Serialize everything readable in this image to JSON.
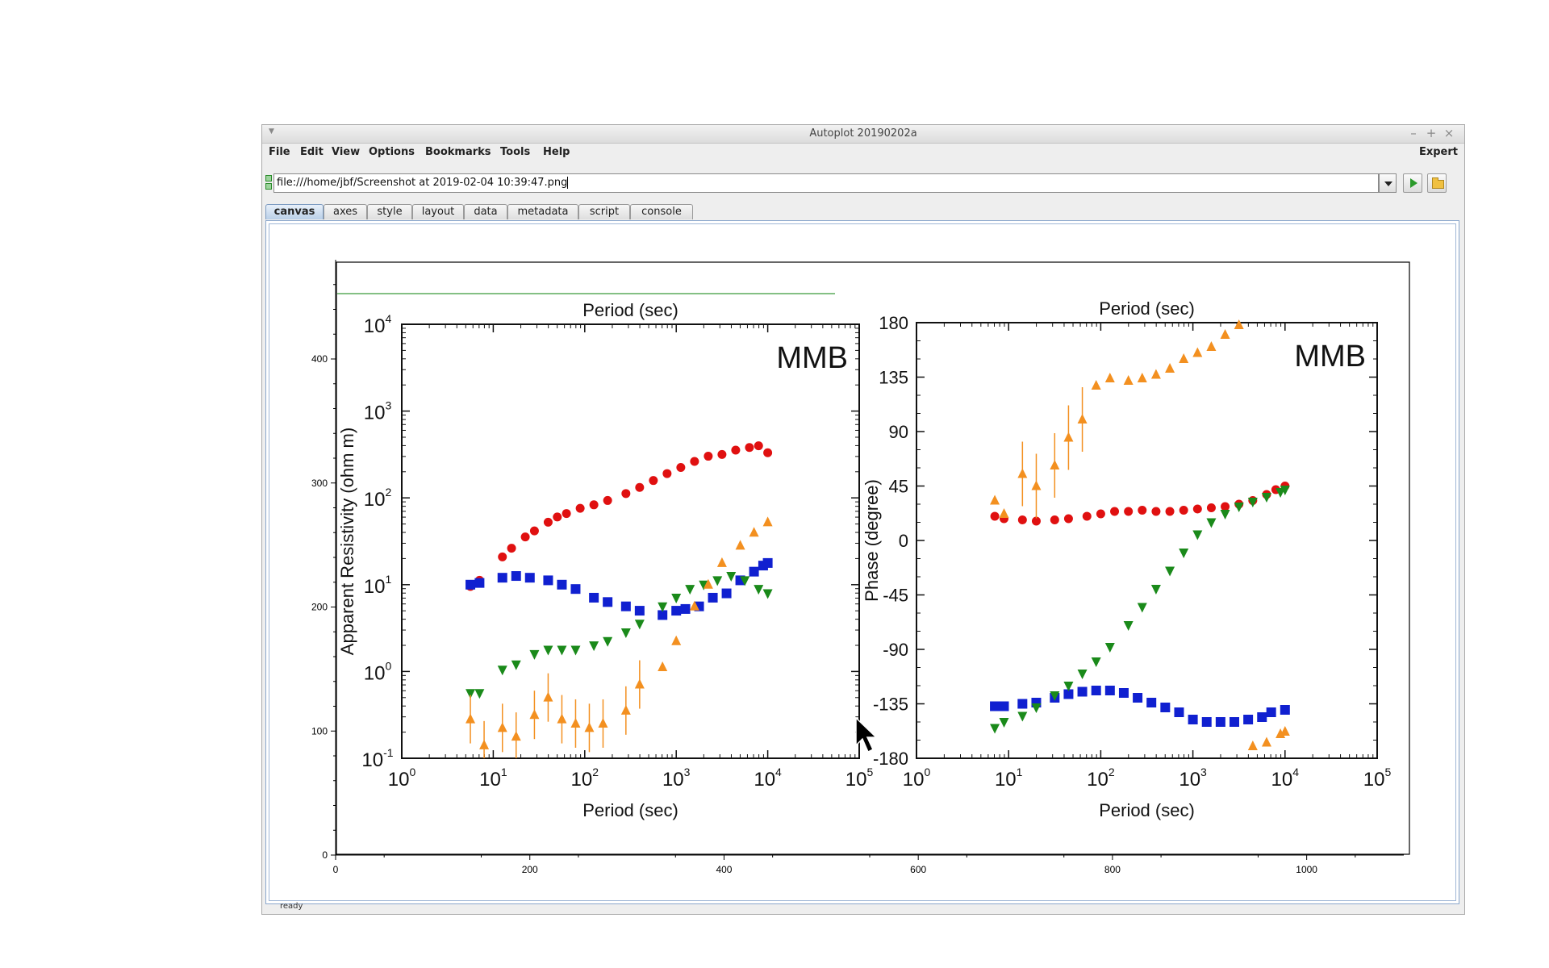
{
  "window": {
    "title": "Autoplot 20190202a",
    "controls": {
      "minimize": "–",
      "maximize": "+",
      "close": "×"
    }
  },
  "menubar": {
    "items": [
      "File",
      "Edit",
      "View",
      "Options",
      "Bookmarks",
      "Tools",
      "Help"
    ],
    "expert_label": "Expert"
  },
  "address": {
    "url": "file:///home/jbf/Screenshot at 2019-02-04 10:39:47.png"
  },
  "tabs": [
    "canvas",
    "axes",
    "style",
    "layout",
    "data",
    "metadata",
    "script",
    "console"
  ],
  "active_tab": "canvas",
  "status": {
    "text": "ready"
  },
  "icons": {
    "dropdown": "chevron-down-icon",
    "play": "play-icon",
    "open": "folder-icon",
    "drag": "drag-handle-icon"
  },
  "colors": {
    "series_red": "#e01010",
    "series_blue": "#1020d0",
    "series_green": "#1a8a1a",
    "series_orange": "#f39020",
    "guide_line": "#3a9a3a"
  },
  "chart_data": {
    "type": "scatter",
    "host_axes": {
      "x_ticks": [
        "0",
        "200",
        "400",
        "600",
        "800",
        "1000"
      ],
      "y_ticks": [
        "0",
        "100",
        "200",
        "300",
        "400"
      ],
      "xlim": [
        0,
        1100
      ],
      "ylim": [
        0,
        480
      ]
    },
    "panels": [
      {
        "label": "MMB",
        "xlabel": "Period (sec)",
        "top_xlabel": "Period (sec)",
        "ylabel": "Apparent Resistivity (ohm m)",
        "x_scale": "log",
        "y_scale": "log",
        "x_ticks": [
          {
            "base": "10",
            "exp": "0"
          },
          {
            "base": "10",
            "exp": "1"
          },
          {
            "base": "10",
            "exp": "2"
          },
          {
            "base": "10",
            "exp": "3"
          },
          {
            "base": "10",
            "exp": "4"
          },
          {
            "base": "10",
            "exp": "5"
          }
        ],
        "y_ticks": [
          {
            "base": "10",
            "exp": "-1"
          },
          {
            "base": "10",
            "exp": "0"
          },
          {
            "base": "10",
            "exp": "1"
          },
          {
            "base": "10",
            "exp": "2"
          },
          {
            "base": "10",
            "exp": "3"
          },
          {
            "base": "10",
            "exp": "4"
          }
        ],
        "xlim_log10": [
          0,
          5
        ],
        "ylim_log10": [
          -1,
          4
        ],
        "series": [
          {
            "color": "series_red",
            "marker": "circle",
            "x_log10": [
              0.75,
              0.85,
              1.1,
              1.2,
              1.35,
              1.45,
              1.6,
              1.7,
              1.8,
              1.95,
              2.1,
              2.25,
              2.45,
              2.6,
              2.75,
              2.9,
              3.05,
              3.2,
              3.35,
              3.5,
              3.65,
              3.8,
              3.9,
              4.0
            ],
            "y_log10": [
              0.98,
              1.05,
              1.32,
              1.42,
              1.55,
              1.62,
              1.72,
              1.78,
              1.82,
              1.88,
              1.92,
              1.97,
              2.05,
              2.12,
              2.2,
              2.28,
              2.35,
              2.42,
              2.48,
              2.5,
              2.55,
              2.58,
              2.6,
              2.52
            ]
          },
          {
            "color": "series_blue",
            "marker": "square",
            "x_log10": [
              0.75,
              0.85,
              1.1,
              1.25,
              1.4,
              1.6,
              1.75,
              1.9,
              2.1,
              2.25,
              2.45,
              2.6,
              2.85,
              3.0,
              3.1,
              3.25,
              3.4,
              3.55,
              3.7,
              3.85,
              3.95,
              4.0
            ],
            "y_log10": [
              1.0,
              1.02,
              1.08,
              1.1,
              1.08,
              1.05,
              1.0,
              0.95,
              0.85,
              0.8,
              0.75,
              0.7,
              0.65,
              0.7,
              0.72,
              0.75,
              0.85,
              0.9,
              1.05,
              1.15,
              1.22,
              1.25
            ]
          },
          {
            "color": "series_green",
            "marker": "triangle-down",
            "x_log10": [
              0.75,
              0.85,
              1.1,
              1.25,
              1.45,
              1.6,
              1.75,
              1.9,
              2.1,
              2.25,
              2.45,
              2.6,
              2.85,
              3.0,
              3.15,
              3.3,
              3.45,
              3.6,
              3.75,
              3.9,
              4.0
            ],
            "y_log10": [
              -0.25,
              -0.25,
              0.02,
              0.08,
              0.2,
              0.25,
              0.25,
              0.25,
              0.3,
              0.35,
              0.45,
              0.55,
              0.75,
              0.85,
              0.95,
              1.0,
              1.05,
              1.1,
              1.05,
              0.95,
              0.9
            ]
          },
          {
            "color": "series_orange",
            "marker": "triangle-up",
            "x_log10": [
              0.75,
              0.9,
              1.1,
              1.25,
              1.45,
              1.6,
              1.75,
              1.9,
              2.05,
              2.2,
              2.45,
              2.6,
              2.85,
              3.0,
              3.2,
              3.35,
              3.5,
              3.7,
              3.85,
              4.0
            ],
            "y_log10": [
              -0.55,
              -0.85,
              -0.65,
              -0.75,
              -0.5,
              -0.3,
              -0.55,
              -0.6,
              -0.65,
              -0.6,
              -0.45,
              -0.15,
              0.05,
              0.35,
              0.75,
              1.0,
              1.25,
              1.45,
              1.6,
              1.72
            ]
          }
        ]
      },
      {
        "label": "MMB",
        "xlabel": "Period (sec)",
        "top_xlabel": "Period (sec)",
        "ylabel": "Phase (degree)",
        "x_scale": "log",
        "x_ticks": [
          {
            "base": "10",
            "exp": "0"
          },
          {
            "base": "10",
            "exp": "1"
          },
          {
            "base": "10",
            "exp": "2"
          },
          {
            "base": "10",
            "exp": "3"
          },
          {
            "base": "10",
            "exp": "4"
          },
          {
            "base": "10",
            "exp": "5"
          }
        ],
        "y_ticks": [
          "180",
          "135",
          "90",
          "45",
          "0",
          "-45",
          "-90",
          "-135",
          "-180"
        ],
        "xlim_log10": [
          0,
          5
        ],
        "ylim": [
          -180,
          180
        ],
        "series": [
          {
            "color": "series_red",
            "marker": "circle",
            "x_log10": [
              0.85,
              0.95,
              1.15,
              1.3,
              1.5,
              1.65,
              1.85,
              2.0,
              2.15,
              2.3,
              2.45,
              2.6,
              2.75,
              2.9,
              3.05,
              3.2,
              3.35,
              3.5,
              3.65,
              3.8,
              3.9,
              4.0
            ],
            "y": [
              20,
              18,
              17,
              16,
              17,
              18,
              20,
              22,
              24,
              24,
              25,
              24,
              24,
              25,
              26,
              27,
              28,
              30,
              33,
              38,
              42,
              45
            ]
          },
          {
            "color": "series_blue",
            "marker": "square",
            "x_log10": [
              0.85,
              0.95,
              1.15,
              1.3,
              1.5,
              1.65,
              1.8,
              1.95,
              2.1,
              2.25,
              2.4,
              2.55,
              2.7,
              2.85,
              3.0,
              3.15,
              3.3,
              3.45,
              3.6,
              3.75,
              3.85,
              4.0
            ],
            "y": [
              -137,
              -137,
              -135,
              -134,
              -130,
              -127,
              -125,
              -124,
              -124,
              -126,
              -130,
              -134,
              -138,
              -142,
              -148,
              -150,
              -150,
              -150,
              -148,
              -146,
              -142,
              -140
            ]
          },
          {
            "color": "series_green",
            "marker": "triangle-down",
            "x_log10": [
              0.85,
              0.95,
              1.15,
              1.3,
              1.5,
              1.65,
              1.8,
              1.95,
              2.1,
              2.3,
              2.45,
              2.6,
              2.75,
              2.9,
              3.05,
              3.2,
              3.35,
              3.5,
              3.65,
              3.8,
              3.95,
              4.0
            ],
            "y": [
              -155,
              -150,
              -145,
              -138,
              -128,
              -120,
              -110,
              -100,
              -88,
              -70,
              -55,
              -40,
              -25,
              -10,
              5,
              15,
              22,
              28,
              32,
              36,
              40,
              42
            ]
          },
          {
            "color": "series_orange",
            "marker": "triangle-up",
            "x_log10": [
              0.85,
              0.95,
              1.15,
              1.3,
              1.5,
              1.65,
              1.8,
              1.95,
              2.1,
              2.3,
              2.45,
              2.6,
              2.75,
              2.9,
              3.05,
              3.2,
              3.35,
              3.5,
              3.65,
              3.8,
              3.95,
              4.0
            ],
            "y": [
              33,
              22,
              55,
              45,
              62,
              85,
              100,
              128,
              134,
              132,
              134,
              137,
              142,
              150,
              155,
              160,
              170,
              178,
              -170,
              -167,
              -160,
              -158
            ]
          }
        ]
      }
    ]
  }
}
